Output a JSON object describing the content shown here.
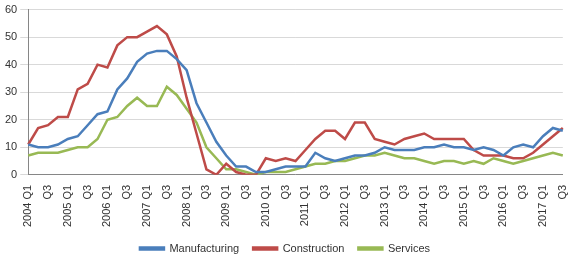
{
  "chart_data": {
    "type": "line",
    "categories": [
      "2004 Q1",
      null,
      "Q3",
      null,
      "2005 Q1",
      null,
      "Q3",
      null,
      "2006 Q1",
      null,
      "Q3",
      null,
      "2007 Q1",
      null,
      "Q3",
      null,
      "2008 Q1",
      null,
      "Q3",
      null,
      "2009 Q1",
      null,
      "Q3",
      null,
      "2010 Q1",
      null,
      "Q3",
      null,
      "2011 Q1",
      null,
      "Q3",
      null,
      "2012 Q1",
      null,
      "Q3",
      null,
      "2013 Q1",
      null,
      "Q3",
      null,
      "2014 Q1",
      null,
      "Q3",
      null,
      "2015 Q1",
      null,
      "Q3",
      null,
      "2016 Q1",
      null,
      "Q3",
      null,
      "2017 Q1",
      null,
      "Q3"
    ],
    "series": [
      {
        "name": "Manufacturing",
        "color": "#4a7ebb",
        "values": [
          11,
          10,
          10,
          11,
          13,
          14,
          18,
          22,
          23,
          31,
          35,
          41,
          44,
          45,
          45,
          42,
          38,
          26,
          19,
          12,
          7,
          3,
          3,
          1,
          1,
          2,
          3,
          3,
          3,
          8,
          6,
          5,
          6,
          7,
          7,
          8,
          10,
          9,
          9,
          9,
          10,
          10,
          11,
          10,
          10,
          9,
          10,
          9,
          7,
          10,
          11,
          10,
          14,
          17,
          16
        ]
      },
      {
        "name": "Construction",
        "color": "#be4b48",
        "values": [
          11,
          17,
          18,
          21,
          21,
          31,
          33,
          40,
          39,
          47,
          50,
          50,
          52,
          54,
          51,
          43,
          28,
          15,
          2,
          0,
          4,
          1,
          0,
          0,
          6,
          5,
          6,
          5,
          9,
          13,
          16,
          16,
          13,
          19,
          19,
          13,
          12,
          11,
          13,
          14,
          15,
          13,
          13,
          13,
          13,
          9,
          7,
          7,
          7,
          6,
          6,
          8,
          11,
          14,
          17
        ]
      },
      {
        "name": "Services",
        "color": "#98b954",
        "values": [
          7,
          8,
          8,
          8,
          9,
          10,
          10,
          13,
          20,
          21,
          25,
          28,
          25,
          25,
          32,
          29,
          24,
          19,
          10,
          6,
          2,
          2,
          1,
          0,
          1,
          1,
          1,
          2,
          3,
          4,
          4,
          5,
          5,
          6,
          7,
          7,
          8,
          7,
          6,
          6,
          5,
          4,
          5,
          5,
          4,
          5,
          4,
          6,
          5,
          4,
          5,
          6,
          7,
          8,
          7
        ]
      }
    ],
    "ylim": [
      0,
      60
    ],
    "yticks": [
      0,
      10,
      20,
      30,
      40,
      50,
      60
    ],
    "grid": true,
    "legend": "bottom"
  }
}
